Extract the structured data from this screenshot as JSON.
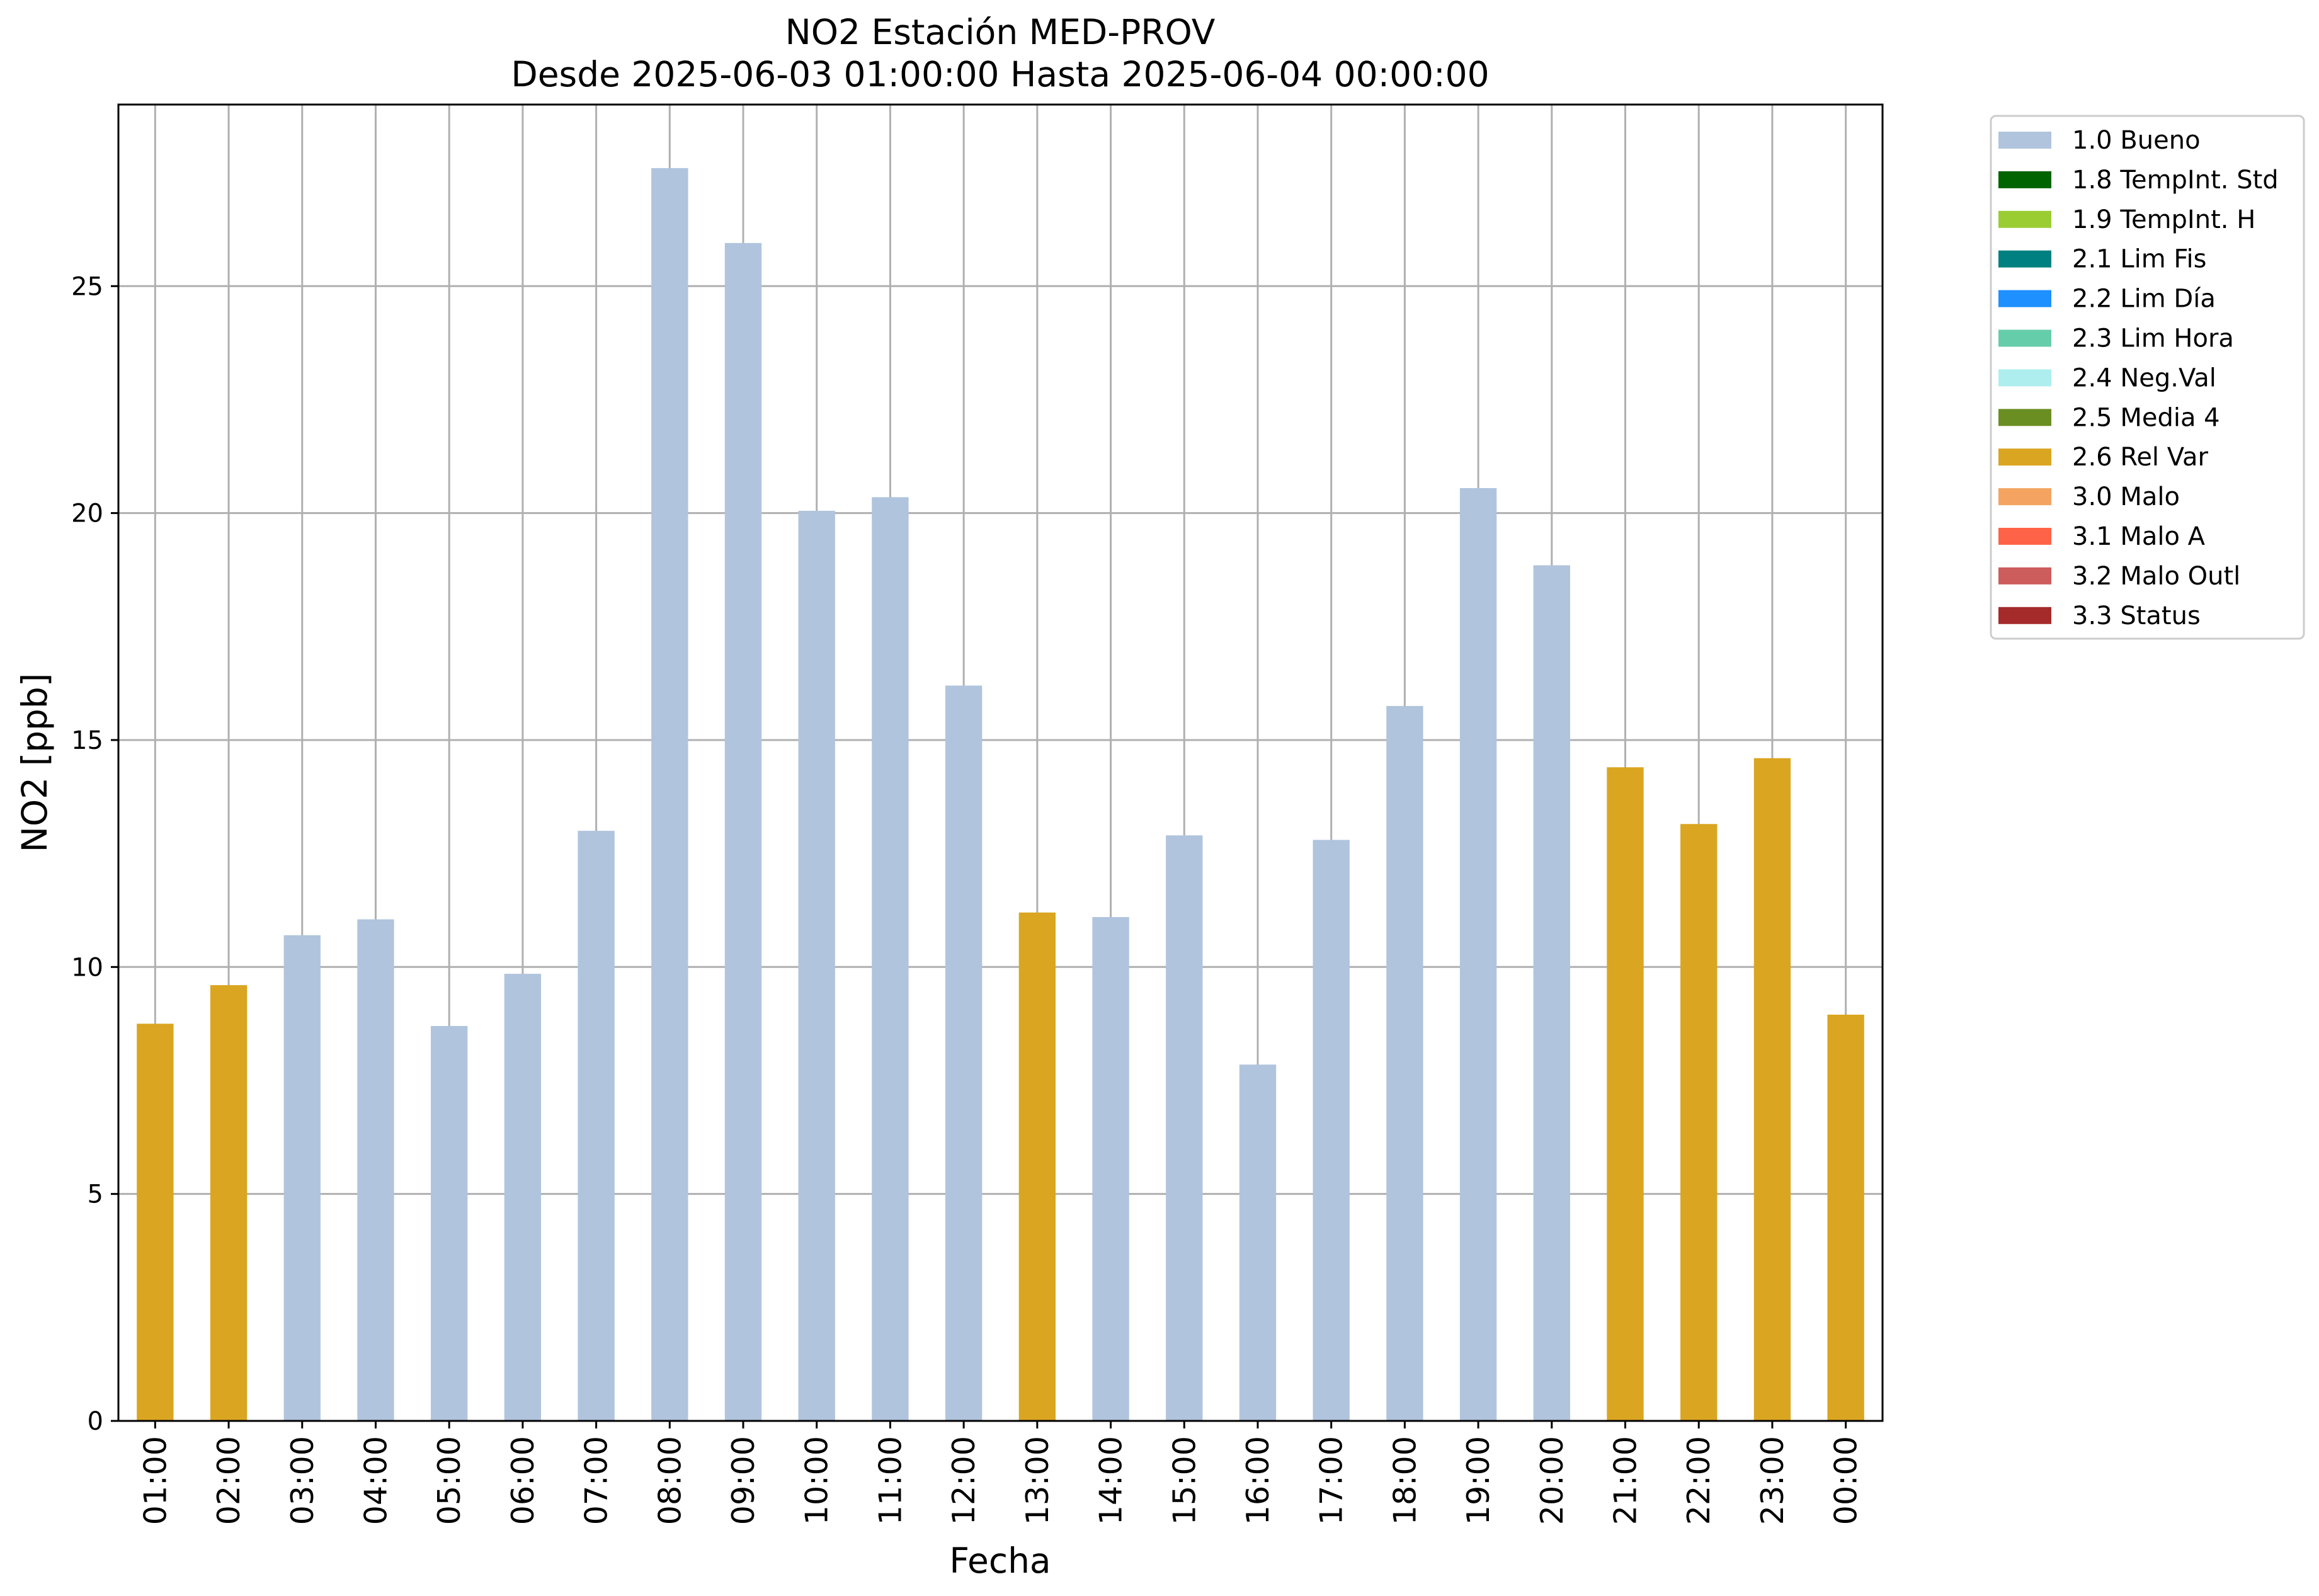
{
  "chart_data": {
    "type": "bar",
    "title": "NO2 Estación MED-PROV",
    "subtitle": "Desde 2025-06-03 01:00:00 Hasta 2025-06-04 00:00:00",
    "xlabel": "Fecha",
    "ylabel": "NO2 [ppb]",
    "ylim": [
      0,
      29
    ],
    "yticks": [
      0,
      5,
      10,
      15,
      20,
      25
    ],
    "grid": true,
    "legend_position": "outside-top-right",
    "categories": [
      "01:00",
      "02:00",
      "03:00",
      "04:00",
      "05:00",
      "06:00",
      "07:00",
      "08:00",
      "09:00",
      "10:00",
      "11:00",
      "12:00",
      "13:00",
      "14:00",
      "15:00",
      "16:00",
      "17:00",
      "18:00",
      "19:00",
      "20:00",
      "21:00",
      "22:00",
      "23:00",
      "00:00"
    ],
    "values": [
      8.75,
      9.6,
      10.7,
      11.05,
      8.7,
      9.85,
      13.0,
      27.6,
      25.95,
      20.05,
      20.35,
      16.2,
      11.2,
      11.1,
      12.9,
      7.85,
      12.8,
      15.75,
      20.55,
      18.85,
      14.4,
      13.15,
      14.6,
      8.95
    ],
    "flags": [
      "2.6 Rel Var",
      "2.6 Rel Var",
      "1.0 Bueno",
      "1.0 Bueno",
      "1.0 Bueno",
      "1.0 Bueno",
      "1.0 Bueno",
      "1.0 Bueno",
      "1.0 Bueno",
      "1.0 Bueno",
      "1.0 Bueno",
      "1.0 Bueno",
      "2.6 Rel Var",
      "1.0 Bueno",
      "1.0 Bueno",
      "1.0 Bueno",
      "1.0 Bueno",
      "1.0 Bueno",
      "1.0 Bueno",
      "1.0 Bueno",
      "2.6 Rel Var",
      "2.6 Rel Var",
      "2.6 Rel Var",
      "2.6 Rel Var"
    ],
    "legend": [
      {
        "label": "1.0 Bueno",
        "color": "#b0c4de"
      },
      {
        "label": "1.8 TempInt. Std",
        "color": "#006400"
      },
      {
        "label": "1.9 TempInt. H",
        "color": "#9acd32"
      },
      {
        "label": "2.1 Lim Fis",
        "color": "#008080"
      },
      {
        "label": "2.2 Lim Día",
        "color": "#1e90ff"
      },
      {
        "label": "2.3 Lim Hora",
        "color": "#66cdaa"
      },
      {
        "label": "2.4 Neg.Val",
        "color": "#afeeee"
      },
      {
        "label": "2.5 Media 4",
        "color": "#6b8e23"
      },
      {
        "label": "2.6 Rel Var",
        "color": "#daa520"
      },
      {
        "label": "3.0 Malo",
        "color": "#f4a460"
      },
      {
        "label": "3.1 Malo A",
        "color": "#ff6347"
      },
      {
        "label": "3.2 Malo Outl",
        "color": "#cd5c5c"
      },
      {
        "label": "3.3 Status",
        "color": "#a52a2a"
      }
    ]
  }
}
